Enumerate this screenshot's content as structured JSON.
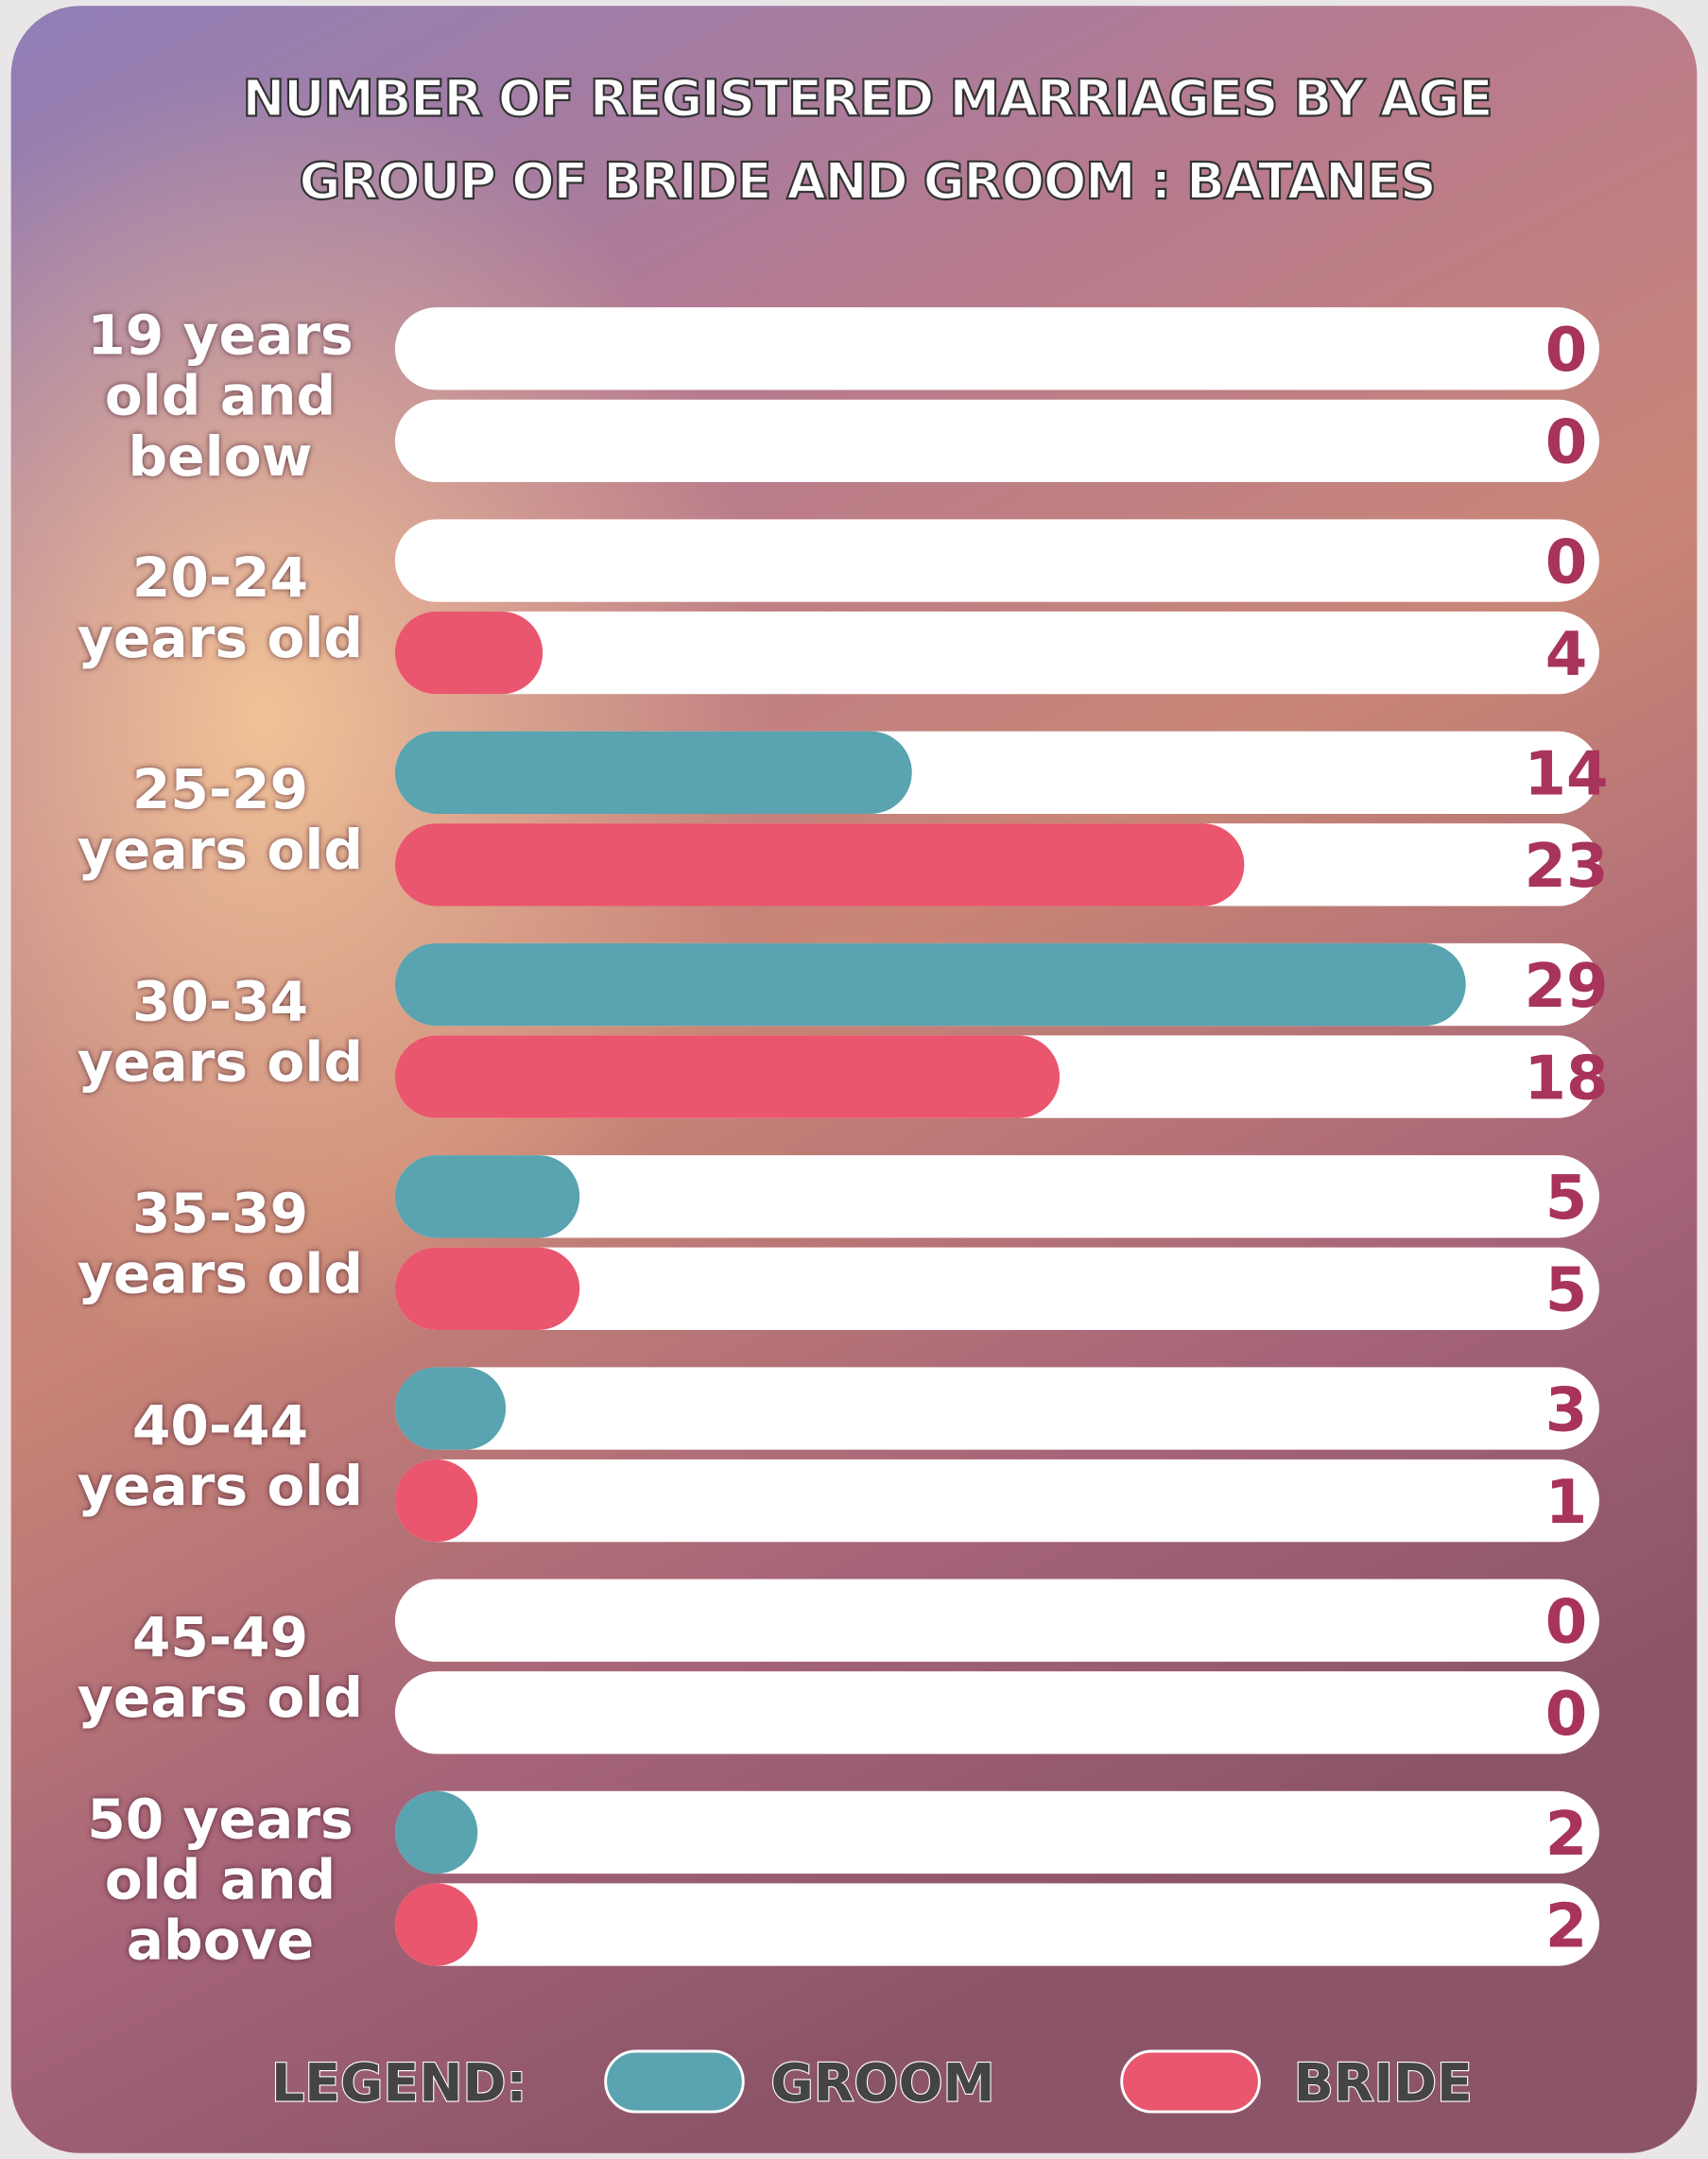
{
  "chart_data": {
    "type": "bar",
    "orientation": "horizontal",
    "title": "NUMBER OF REGISTERED MARRIAGES BY AGE GROUP OF BRIDE AND GROOM : BATANES",
    "categories": [
      "19 years old and below",
      "20-24 years old",
      "25-29 years old",
      "30-34 years old",
      "35-39 years old",
      "40-44 years old",
      "45-49 years old",
      "50 years old and above"
    ],
    "series": [
      {
        "name": "GROOM",
        "color": "#5aa3b0",
        "values": [
          0,
          0,
          14,
          29,
          5,
          3,
          0,
          2
        ]
      },
      {
        "name": "BRIDE",
        "color": "#e9566d",
        "values": [
          0,
          4,
          23,
          18,
          5,
          1,
          0,
          2
        ]
      }
    ],
    "legend_title": "LEGEND:"
  }
}
